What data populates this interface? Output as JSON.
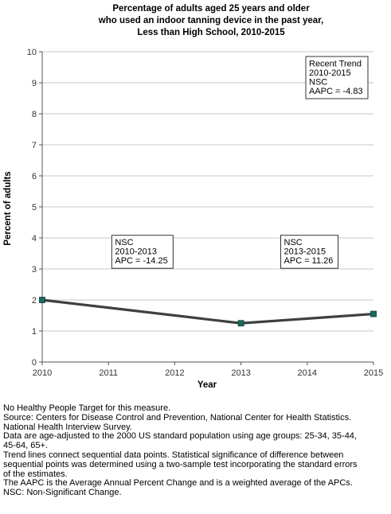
{
  "title_lines": [
    "Percentage of adults aged 25 years and older",
    "who used an indoor tanning device in the past year,",
    "Less than High School,  2010-2015"
  ],
  "chart_data": {
    "type": "line",
    "title": "Percentage of adults aged 25 years and older who used an indoor tanning device in the past year, Less than High School,  2010-2015",
    "xlabel": "Year",
    "ylabel": "Percent of adults",
    "x": [
      2010,
      2011,
      2012,
      2013,
      2014,
      2015
    ],
    "x_ticks": [
      "2010",
      "2011",
      "2012",
      "2013",
      "2014",
      "2015"
    ],
    "y_ticks": [
      "0",
      "1",
      "2",
      "3",
      "4",
      "5",
      "6",
      "7",
      "8",
      "9",
      "10"
    ],
    "ylim": [
      0,
      10
    ],
    "xlim": [
      2010,
      2015
    ],
    "grid": true,
    "series": [
      {
        "points": [
          {
            "x": 2010,
            "y": 2.0
          },
          {
            "x": 2013,
            "y": 1.25
          },
          {
            "x": 2015,
            "y": 1.55
          }
        ],
        "color": "#3f3f3f",
        "marker_color": "#1a6a5e"
      }
    ],
    "annotations": [
      {
        "lines": [
          "Recent Trend",
          "2010-2015",
          "NSC",
          "AAPC = -4.83"
        ],
        "anchor": "top-right"
      },
      {
        "lines": [
          "NSC",
          "2010-2013",
          "APC = -14.25"
        ],
        "anchor_x": 2011.05,
        "anchor_y": 3.2
      },
      {
        "lines": [
          "NSC",
          "2013-2015",
          "APC = 11.26"
        ],
        "anchor_x": 2013.6,
        "anchor_y": 3.2
      }
    ]
  },
  "notes": [
    "No Healthy People Target for this measure.",
    "Source: Centers for Disease Control and Prevention, National Center for Health Statistics.",
    "National Health Interview Survey.",
    "Data are age-adjusted to the 2000 US standard population using age groups: 25-34, 35-44,",
    "45-64, 65+.",
    "Trend lines connect sequential data points. Statistical significance of difference between",
    "sequential points was determined using a two-sample test incorporating the standard errors",
    "of the estimates.",
    "The AAPC is the Average Annual Percent Change and is a weighted average of the APCs.",
    "NSC: Non-Significant Change."
  ]
}
